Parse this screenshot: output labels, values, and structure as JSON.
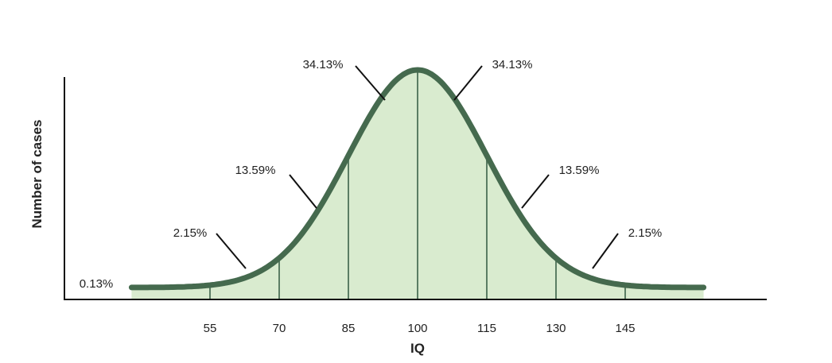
{
  "chart_data": {
    "type": "area",
    "title": "",
    "xlabel": "IQ",
    "ylabel": "Number of cases",
    "xticks": [
      55,
      70,
      85,
      100,
      115,
      130,
      145
    ],
    "xlim": [
      40,
      160
    ],
    "distribution": {
      "name": "normal",
      "mean": 100,
      "sd": 15
    },
    "curve_range": [
      38,
      162
    ],
    "dividers": [
      55,
      70,
      85,
      100,
      115,
      130,
      145
    ],
    "region_labels": [
      {
        "text": "0.13%",
        "region": "below 55",
        "leader": false
      },
      {
        "text": "2.15%",
        "region": "55-70",
        "leader": true
      },
      {
        "text": "13.59%",
        "region": "70-85",
        "leader": true
      },
      {
        "text": "34.13%",
        "region": "85-100",
        "leader": true
      },
      {
        "text": "34.13%",
        "region": "100-115",
        "leader": true
      },
      {
        "text": "13.59%",
        "region": "115-130",
        "leader": true
      },
      {
        "text": "2.15%",
        "region": "130-145",
        "leader": true
      }
    ],
    "colors": {
      "curve": "#456a4e",
      "fill": "#d9ebcf",
      "divider": "#5b7d64",
      "axis": "#111111"
    },
    "grid": false,
    "legend": "none"
  }
}
